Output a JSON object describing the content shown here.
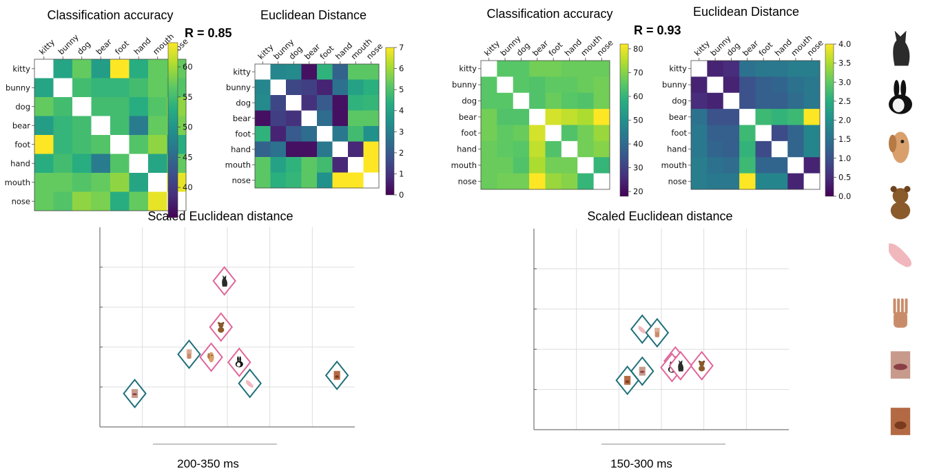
{
  "labels": [
    "kitty",
    "bunny",
    "dog",
    "bear",
    "foot",
    "hand",
    "mouth",
    "nose"
  ],
  "colors": {
    "animate": "#e0669a",
    "inanimate": "#1f6f7a",
    "grid": "#dddddd",
    "axis": "#888888"
  },
  "panels": [
    {
      "acc_title": "Classification accuracy",
      "dist_title": "Euclidean Distance",
      "r_label": "R = 0.85",
      "mds_title": "Scaled Euclidean distance",
      "time_label": "200-350 ms"
    },
    {
      "acc_title": "Classification accuracy",
      "dist_title": "Euclidean Distance",
      "r_label": "R = 0.93",
      "mds_title": "Scaled Euclidean distance",
      "time_label": "150-300 ms"
    }
  ],
  "chart_data": [
    {
      "type": "heatmap",
      "title": "Classification accuracy",
      "rows": [
        "kitty",
        "bunny",
        "dog",
        "bear",
        "foot",
        "hand",
        "mouth",
        "nose"
      ],
      "cols": [
        "kitty",
        "bunny",
        "dog",
        "bear",
        "foot",
        "hand",
        "mouth",
        "nose"
      ],
      "vmin": 35,
      "vmax": 64,
      "colorbar_ticks": [
        40,
        45,
        50,
        55,
        60
      ],
      "values": [
        [
          null,
          52,
          57,
          51,
          64,
          53,
          57,
          57
        ],
        [
          52,
          null,
          55,
          54,
          54,
          55,
          57,
          56
        ],
        [
          57,
          55,
          null,
          55,
          55,
          53,
          56,
          59
        ],
        [
          51,
          54,
          55,
          null,
          55,
          47,
          57,
          58
        ],
        [
          64,
          54,
          55,
          56,
          null,
          56,
          59,
          53
        ],
        [
          53,
          55,
          53,
          47,
          56,
          null,
          52,
          57
        ],
        [
          57,
          57,
          56,
          57,
          59,
          52,
          null,
          63
        ],
        [
          57,
          56,
          59,
          58,
          53,
          57,
          63,
          null
        ]
      ]
    },
    {
      "type": "heatmap",
      "title": "Euclidean Distance",
      "rows": [
        "kitty",
        "bunny",
        "dog",
        "bear",
        "foot",
        "hand",
        "mouth",
        "nose"
      ],
      "cols": [
        "kitty",
        "bunny",
        "dog",
        "bear",
        "foot",
        "hand",
        "mouth",
        "nose"
      ],
      "vmin": 0,
      "vmax": 7,
      "colorbar_ticks": [
        0,
        1,
        2,
        3,
        4,
        5,
        6,
        7
      ],
      "values": [
        [
          null,
          3.2,
          3.3,
          0.3,
          4.5,
          2.2,
          5.2,
          5.2
        ],
        [
          3.2,
          null,
          1.5,
          1.3,
          0.7,
          2.6,
          4.0,
          4.4
        ],
        [
          3.3,
          1.5,
          null,
          1.0,
          2.0,
          0.3,
          4.5,
          4.6
        ],
        [
          0.3,
          1.3,
          1.0,
          null,
          2.5,
          0.3,
          5.2,
          5.2
        ],
        [
          4.5,
          0.7,
          2.0,
          2.5,
          null,
          2.8,
          4.8,
          3.5
        ],
        [
          2.2,
          2.6,
          0.3,
          0.3,
          2.8,
          null,
          0.8,
          7.0
        ],
        [
          5.2,
          4.0,
          4.5,
          5.2,
          4.8,
          0.8,
          null,
          7.0
        ],
        [
          5.2,
          4.4,
          4.6,
          5.2,
          3.5,
          7.0,
          7.0,
          null
        ]
      ]
    },
    {
      "type": "heatmap",
      "title": "Classification accuracy",
      "rows": [
        "kitty",
        "bunny",
        "dog",
        "bear",
        "foot",
        "hand",
        "mouth",
        "nose"
      ],
      "cols": [
        "kitty",
        "bunny",
        "dog",
        "bear",
        "foot",
        "hand",
        "mouth",
        "nose"
      ],
      "vmin": 18,
      "vmax": 82,
      "colorbar_ticks": [
        20,
        30,
        40,
        50,
        60,
        70,
        80
      ],
      "values": [
        [
          null,
          65,
          65,
          68,
          68,
          67,
          67,
          67
        ],
        [
          65,
          null,
          65,
          64,
          66,
          66,
          67,
          68
        ],
        [
          65,
          65,
          null,
          64,
          67,
          65,
          64,
          68
        ],
        [
          68,
          64,
          64,
          null,
          78,
          76,
          74,
          82
        ],
        [
          68,
          66,
          67,
          78,
          null,
          64,
          68,
          72
        ],
        [
          67,
          66,
          65,
          76,
          64,
          null,
          68,
          70
        ],
        [
          67,
          67,
          64,
          74,
          68,
          68,
          null,
          60
        ],
        [
          67,
          68,
          68,
          82,
          72,
          70,
          60,
          null
        ]
      ]
    },
    {
      "type": "heatmap",
      "title": "Euclidean Distance",
      "rows": [
        "kitty",
        "bunny",
        "dog",
        "bear",
        "foot",
        "hand",
        "mouth",
        "nose"
      ],
      "cols": [
        "kitty",
        "bunny",
        "dog",
        "bear",
        "foot",
        "hand",
        "mouth",
        "nose"
      ],
      "vmin": 0,
      "vmax": 4,
      "colorbar_ticks": [
        0.0,
        0.5,
        1.0,
        1.5,
        2.0,
        2.5,
        3.0,
        3.5,
        4.0
      ],
      "values": [
        [
          null,
          0.4,
          0.5,
          1.5,
          1.6,
          1.6,
          1.7,
          1.7
        ],
        [
          0.4,
          null,
          0.4,
          1.0,
          1.2,
          1.3,
          1.5,
          1.6
        ],
        [
          0.5,
          0.4,
          null,
          1.0,
          1.2,
          1.2,
          1.4,
          1.6
        ],
        [
          1.5,
          1.0,
          1.0,
          null,
          2.7,
          2.6,
          2.7,
          4.0
        ],
        [
          1.6,
          1.2,
          1.2,
          2.7,
          null,
          0.9,
          1.3,
          1.8
        ],
        [
          1.6,
          1.3,
          1.2,
          2.6,
          0.9,
          null,
          1.3,
          1.8
        ],
        [
          1.7,
          1.5,
          1.4,
          2.7,
          1.3,
          1.3,
          null,
          0.4
        ],
        [
          1.7,
          1.6,
          1.6,
          4.0,
          1.8,
          1.8,
          0.4,
          null
        ]
      ]
    },
    {
      "type": "scatter",
      "title": "Scaled Euclidean distance",
      "xlim": [
        0,
        6
      ],
      "ylim": [
        0,
        5.5
      ],
      "grid": true,
      "points": [
        {
          "name": "kitty",
          "group": "animate",
          "x": 2.93,
          "y": 4.02
        },
        {
          "name": "bear",
          "group": "animate",
          "x": 2.85,
          "y": 2.75
        },
        {
          "name": "dog",
          "group": "animate",
          "x": 2.62,
          "y": 1.92
        },
        {
          "name": "bunny",
          "group": "animate",
          "x": 3.28,
          "y": 1.78
        },
        {
          "name": "hand",
          "group": "inanimate",
          "x": 2.1,
          "y": 2.0
        },
        {
          "name": "foot",
          "group": "inanimate",
          "x": 3.53,
          "y": 1.2
        },
        {
          "name": "nose",
          "group": "inanimate",
          "x": 5.58,
          "y": 1.42
        },
        {
          "name": "mouth",
          "group": "inanimate",
          "x": 0.82,
          "y": 0.92
        }
      ]
    },
    {
      "type": "scatter",
      "title": "Scaled Euclidean distance",
      "xlim": [
        0,
        6
      ],
      "ylim": [
        0,
        5.5
      ],
      "grid": true,
      "points": [
        {
          "name": "foot",
          "group": "inanimate",
          "x": 2.55,
          "y": 2.75
        },
        {
          "name": "hand",
          "group": "inanimate",
          "x": 2.9,
          "y": 2.65
        },
        {
          "name": "bear",
          "group": "animate",
          "x": 3.95,
          "y": 1.75
        },
        {
          "name": "dog",
          "group": "animate",
          "x": 3.33,
          "y": 1.88
        },
        {
          "name": "bunny",
          "group": "animate",
          "x": 3.25,
          "y": 1.7
        },
        {
          "name": "kitty",
          "group": "animate",
          "x": 3.45,
          "y": 1.75
        },
        {
          "name": "mouth",
          "group": "inanimate",
          "x": 2.55,
          "y": 1.6
        },
        {
          "name": "nose",
          "group": "inanimate",
          "x": 2.2,
          "y": 1.35
        }
      ]
    }
  ]
}
